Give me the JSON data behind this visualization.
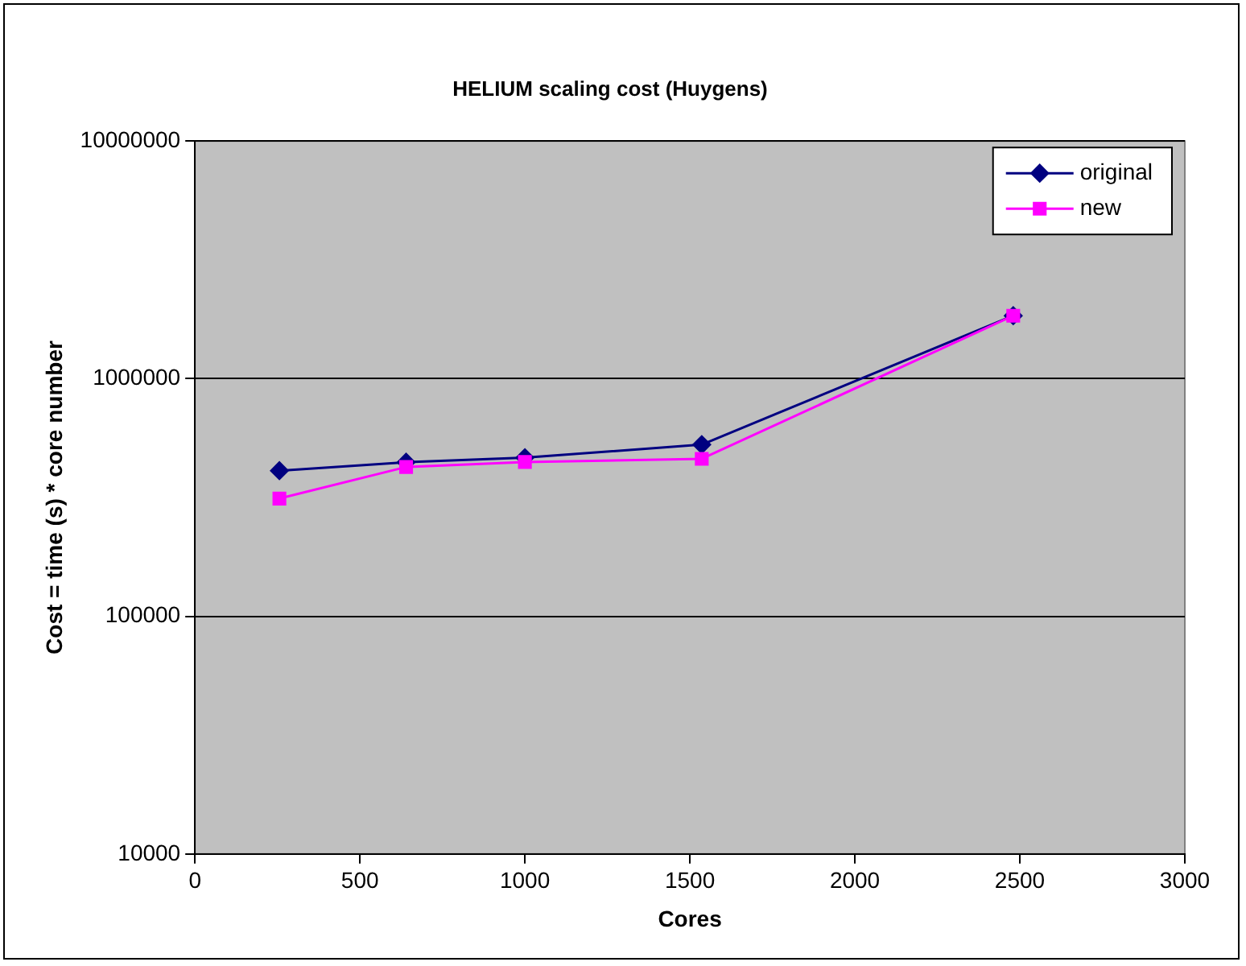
{
  "chart_data": {
    "type": "line",
    "title": "HELIUM scaling cost (Huygens)",
    "xlabel": "Cores",
    "ylabel": "Cost = time (s) * core number",
    "x": [
      256,
      640,
      1000,
      1536,
      2480
    ],
    "series": [
      {
        "name": "original",
        "color": "#000080",
        "marker": "diamond",
        "values": [
          410000,
          445000,
          465000,
          528000,
          1840000
        ]
      },
      {
        "name": "new",
        "color": "#ff00ff",
        "marker": "square",
        "values": [
          313000,
          425000,
          446000,
          460000,
          1840000
        ]
      }
    ],
    "xlim": [
      0,
      3000
    ],
    "xticks": [
      0,
      500,
      1000,
      1500,
      2000,
      2500,
      3000
    ],
    "ylim": [
      10000,
      10000000
    ],
    "yticks": [
      10000,
      100000,
      1000000,
      10000000
    ],
    "log": "y",
    "grid": "y",
    "legend": "top right",
    "line_style": "solid"
  }
}
